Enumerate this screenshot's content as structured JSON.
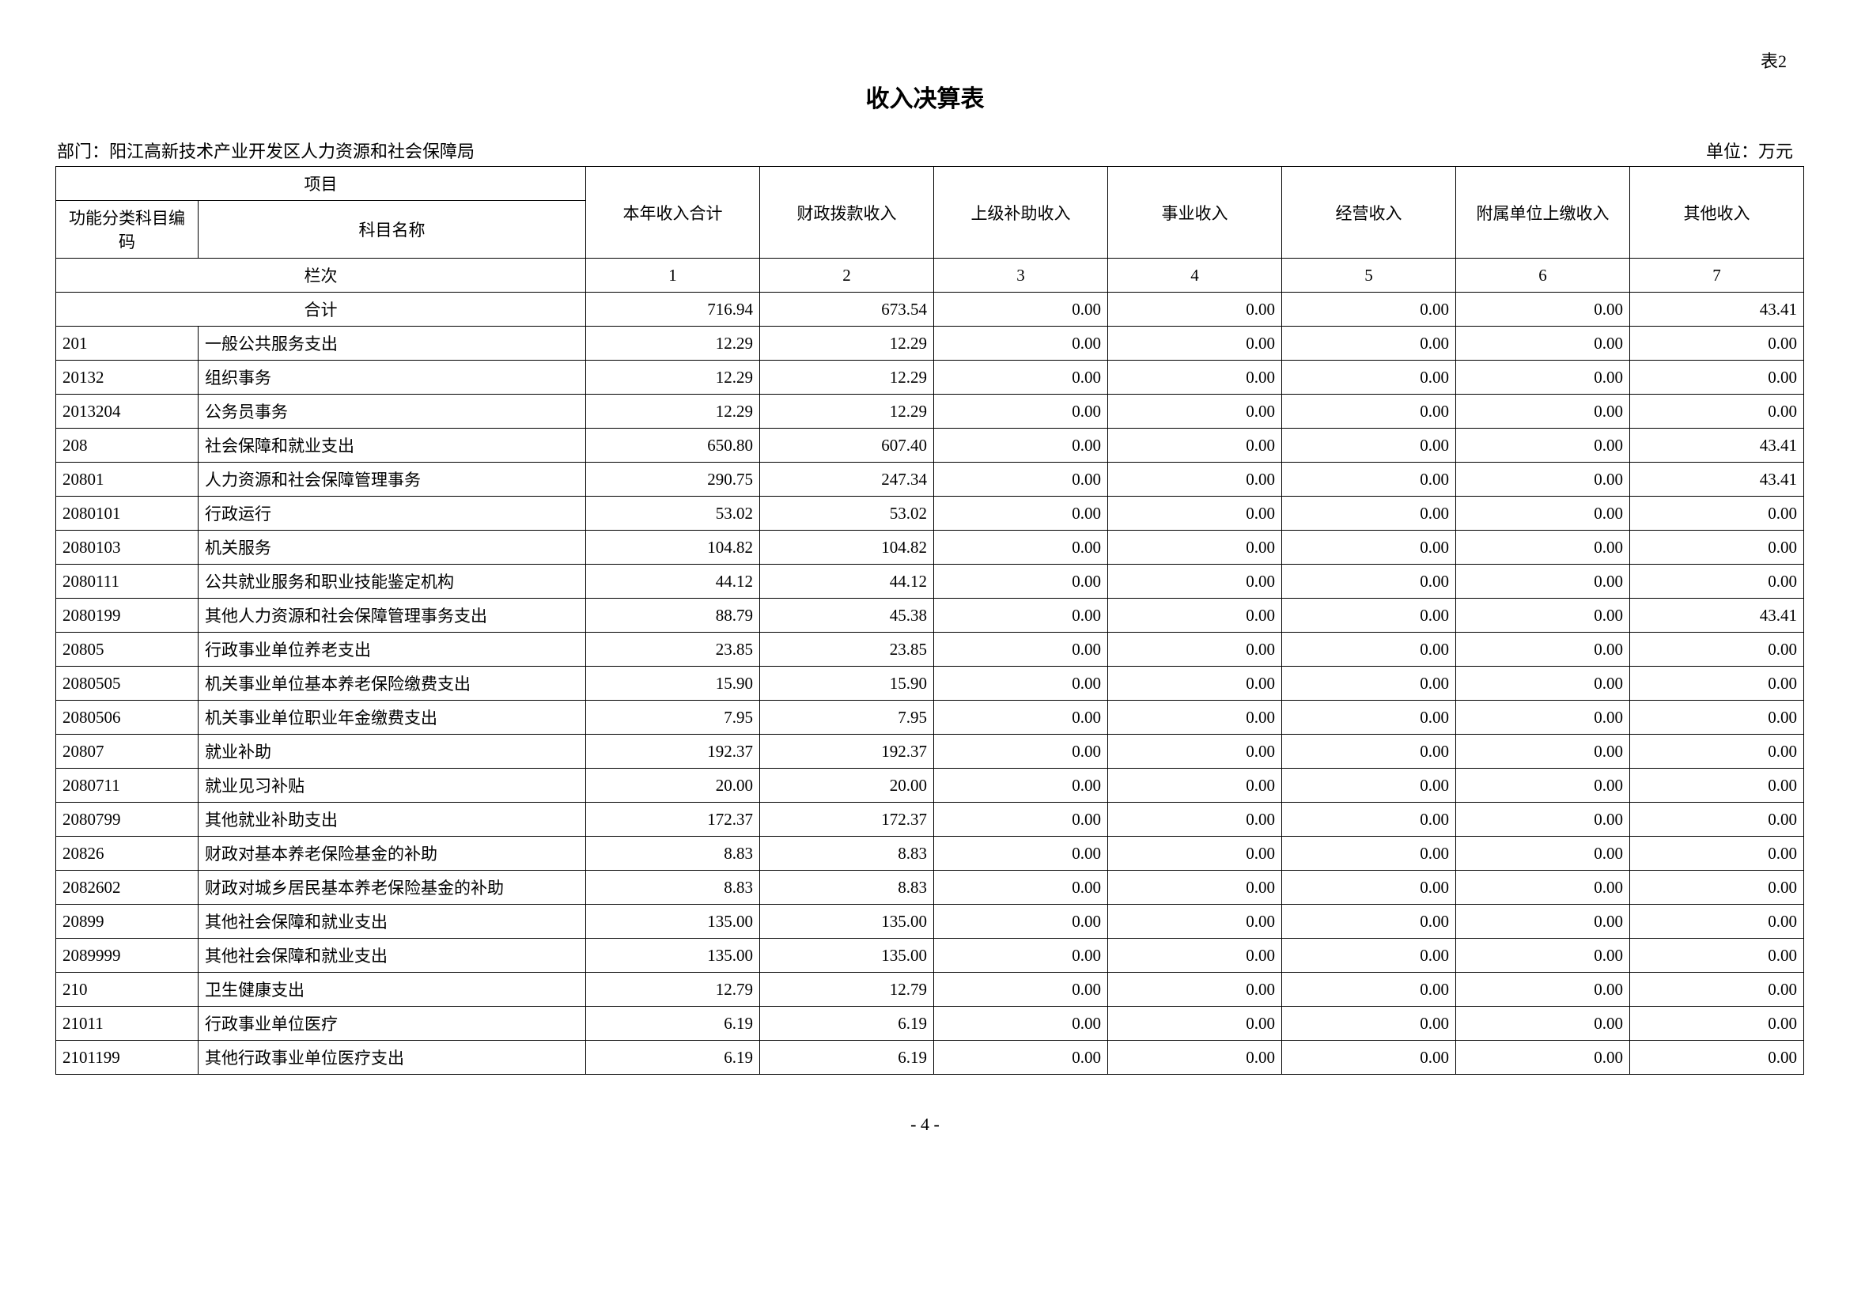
{
  "table_label": "表2",
  "title": "收入决算表",
  "department_prefix": "部门：",
  "department": "阳江高新技术产业开发区人力资源和社会保障局",
  "unit_label": "单位：万元",
  "header": {
    "project": "项目",
    "code": "功能分类科目编码",
    "name": "科目名称",
    "cols": [
      "本年收入合计",
      "财政拨款收入",
      "上级补助收入",
      "事业收入",
      "经营收入",
      "附属单位上缴收入",
      "其他收入"
    ],
    "lanci": "栏次",
    "col_nums": [
      "1",
      "2",
      "3",
      "4",
      "5",
      "6",
      "7"
    ],
    "total_label": "合计"
  },
  "rows": [
    {
      "code": "",
      "name": "合计",
      "v": [
        "716.94",
        "673.54",
        "0.00",
        "0.00",
        "0.00",
        "0.00",
        "43.41"
      ],
      "is_total": true
    },
    {
      "code": "201",
      "name": "一般公共服务支出",
      "v": [
        "12.29",
        "12.29",
        "0.00",
        "0.00",
        "0.00",
        "0.00",
        "0.00"
      ]
    },
    {
      "code": "20132",
      "name": "组织事务",
      "v": [
        "12.29",
        "12.29",
        "0.00",
        "0.00",
        "0.00",
        "0.00",
        "0.00"
      ]
    },
    {
      "code": "2013204",
      "name": "公务员事务",
      "v": [
        "12.29",
        "12.29",
        "0.00",
        "0.00",
        "0.00",
        "0.00",
        "0.00"
      ]
    },
    {
      "code": "208",
      "name": "社会保障和就业支出",
      "v": [
        "650.80",
        "607.40",
        "0.00",
        "0.00",
        "0.00",
        "0.00",
        "43.41"
      ]
    },
    {
      "code": "20801",
      "name": "人力资源和社会保障管理事务",
      "v": [
        "290.75",
        "247.34",
        "0.00",
        "0.00",
        "0.00",
        "0.00",
        "43.41"
      ]
    },
    {
      "code": "2080101",
      "name": "行政运行",
      "v": [
        "53.02",
        "53.02",
        "0.00",
        "0.00",
        "0.00",
        "0.00",
        "0.00"
      ]
    },
    {
      "code": "2080103",
      "name": "机关服务",
      "v": [
        "104.82",
        "104.82",
        "0.00",
        "0.00",
        "0.00",
        "0.00",
        "0.00"
      ]
    },
    {
      "code": "2080111",
      "name": "公共就业服务和职业技能鉴定机构",
      "v": [
        "44.12",
        "44.12",
        "0.00",
        "0.00",
        "0.00",
        "0.00",
        "0.00"
      ]
    },
    {
      "code": "2080199",
      "name": "其他人力资源和社会保障管理事务支出",
      "v": [
        "88.79",
        "45.38",
        "0.00",
        "0.00",
        "0.00",
        "0.00",
        "43.41"
      ]
    },
    {
      "code": "20805",
      "name": "行政事业单位养老支出",
      "v": [
        "23.85",
        "23.85",
        "0.00",
        "0.00",
        "0.00",
        "0.00",
        "0.00"
      ]
    },
    {
      "code": "2080505",
      "name": "机关事业单位基本养老保险缴费支出",
      "v": [
        "15.90",
        "15.90",
        "0.00",
        "0.00",
        "0.00",
        "0.00",
        "0.00"
      ]
    },
    {
      "code": "2080506",
      "name": "机关事业单位职业年金缴费支出",
      "v": [
        "7.95",
        "7.95",
        "0.00",
        "0.00",
        "0.00",
        "0.00",
        "0.00"
      ]
    },
    {
      "code": "20807",
      "name": "就业补助",
      "v": [
        "192.37",
        "192.37",
        "0.00",
        "0.00",
        "0.00",
        "0.00",
        "0.00"
      ]
    },
    {
      "code": "2080711",
      "name": "就业见习补贴",
      "v": [
        "20.00",
        "20.00",
        "0.00",
        "0.00",
        "0.00",
        "0.00",
        "0.00"
      ]
    },
    {
      "code": "2080799",
      "name": "其他就业补助支出",
      "v": [
        "172.37",
        "172.37",
        "0.00",
        "0.00",
        "0.00",
        "0.00",
        "0.00"
      ]
    },
    {
      "code": "20826",
      "name": "财政对基本养老保险基金的补助",
      "v": [
        "8.83",
        "8.83",
        "0.00",
        "0.00",
        "0.00",
        "0.00",
        "0.00"
      ]
    },
    {
      "code": "2082602",
      "name": "财政对城乡居民基本养老保险基金的补助",
      "v": [
        "8.83",
        "8.83",
        "0.00",
        "0.00",
        "0.00",
        "0.00",
        "0.00"
      ]
    },
    {
      "code": "20899",
      "name": "其他社会保障和就业支出",
      "v": [
        "135.00",
        "135.00",
        "0.00",
        "0.00",
        "0.00",
        "0.00",
        "0.00"
      ]
    },
    {
      "code": "2089999",
      "name": "其他社会保障和就业支出",
      "v": [
        "135.00",
        "135.00",
        "0.00",
        "0.00",
        "0.00",
        "0.00",
        "0.00"
      ]
    },
    {
      "code": "210",
      "name": "卫生健康支出",
      "v": [
        "12.79",
        "12.79",
        "0.00",
        "0.00",
        "0.00",
        "0.00",
        "0.00"
      ]
    },
    {
      "code": "21011",
      "name": "行政事业单位医疗",
      "v": [
        "6.19",
        "6.19",
        "0.00",
        "0.00",
        "0.00",
        "0.00",
        "0.00"
      ]
    },
    {
      "code": "2101199",
      "name": "其他行政事业单位医疗支出",
      "v": [
        "6.19",
        "6.19",
        "0.00",
        "0.00",
        "0.00",
        "0.00",
        "0.00"
      ]
    }
  ],
  "page_number": "- 4 -"
}
